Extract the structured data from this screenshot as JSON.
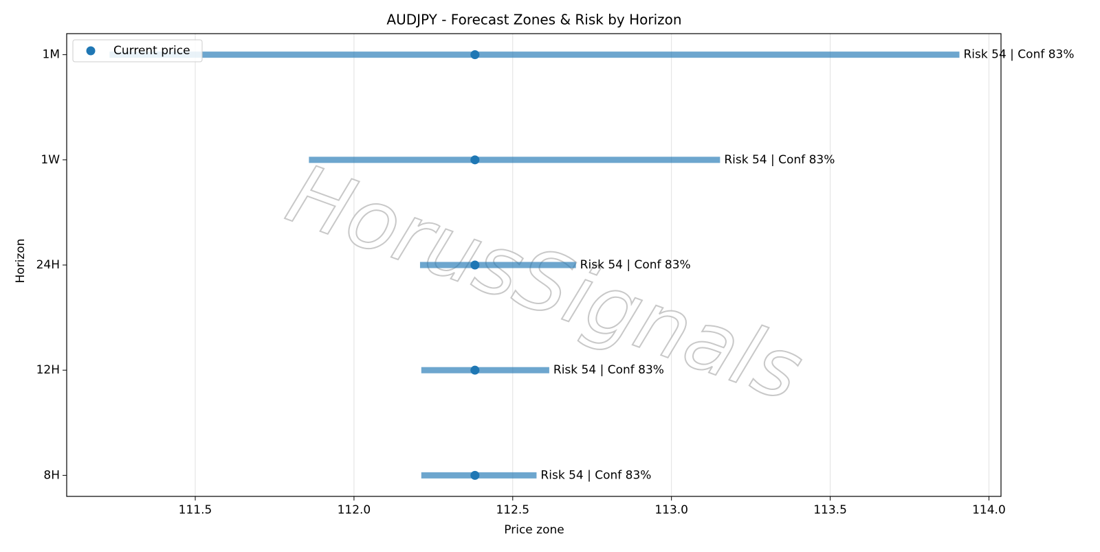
{
  "chart_data": {
    "type": "range",
    "title": "AUDJPY - Forecast Zones & Risk by Horizon",
    "xlabel": "Price zone",
    "ylabel": "Horizon",
    "categories": [
      "8H",
      "12H",
      "24H",
      "1W",
      "1M"
    ],
    "low": [
      112.212,
      112.212,
      112.208,
      111.858,
      111.23
    ],
    "high": [
      112.575,
      112.615,
      112.699,
      113.153,
      113.907
    ],
    "bar_color": "#1f77b4",
    "series": [
      {
        "name": "Current price",
        "color": "#1f77b4",
        "values": [
          112.381,
          112.381,
          112.381,
          112.381,
          112.381
        ]
      }
    ],
    "annotations": [
      "Risk 54 | Conf 83%",
      "Risk 54 | Conf 83%",
      "Risk 54 | Conf 83%",
      "Risk 54 | Conf 83%",
      "Risk 54 | Conf 83%"
    ],
    "xlim": [
      111.095,
      114.038
    ],
    "xticks": [
      111.5,
      {
        "value": 112,
        "label": "112.0"
      },
      112.5,
      {
        "value": 113,
        "label": "113.0"
      },
      113.5,
      {
        "value": 114,
        "label": "114.0"
      }
    ],
    "grid": true,
    "legend": "upper left",
    "watermark": "HorusSignals"
  }
}
